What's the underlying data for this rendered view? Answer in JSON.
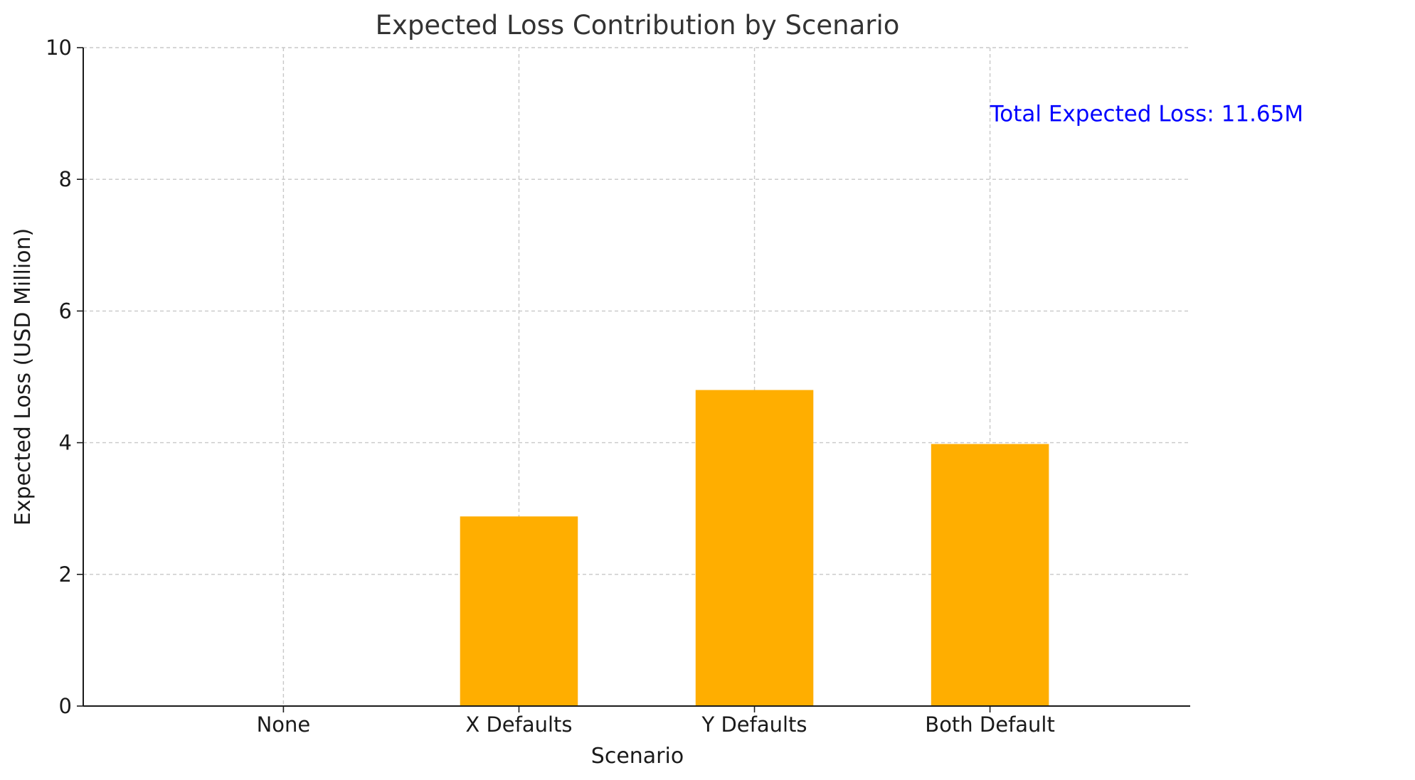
{
  "chart_data": {
    "type": "bar",
    "title": "Expected Loss Contribution by Scenario",
    "xlabel": "Scenario",
    "ylabel": "Expected Loss (USD Million)",
    "categories": [
      "None",
      "X Defaults",
      "Y Defaults",
      "Both Default"
    ],
    "values": [
      0,
      2.88,
      4.8,
      3.98
    ],
    "ylim": [
      0,
      10
    ],
    "yticks": [
      0,
      2,
      4,
      6,
      8,
      10
    ],
    "grid": true,
    "bar_color": "#ffae00",
    "annotation": {
      "text": "Total Expected Loss: 11.65M",
      "x_category": "Both Default",
      "y": 9.0,
      "color": "#0000ff"
    }
  }
}
